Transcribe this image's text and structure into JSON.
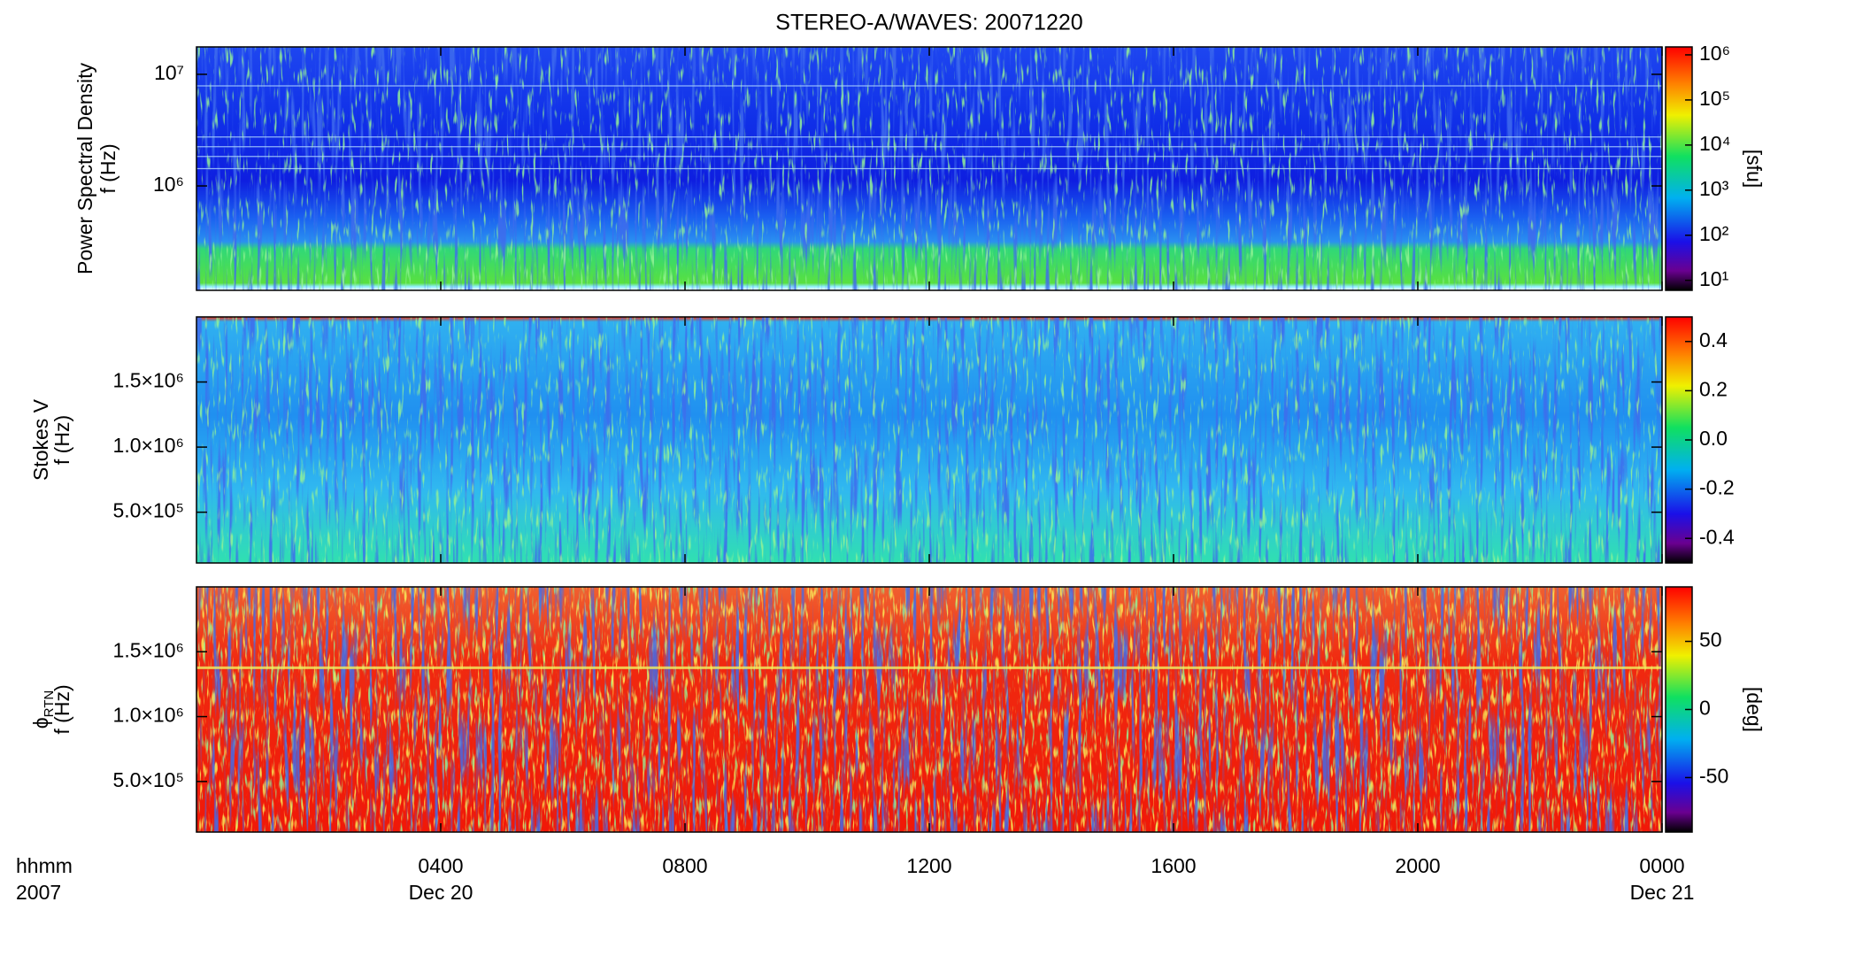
{
  "chart_data": [
    {
      "type": "spectrogram",
      "title": "STEREO-A/WAVES: 20071220",
      "ylabel": "Power Spectral Density",
      "ylabel_unit": "f (Hz)",
      "yscale": "log",
      "ylim": [
        116000,
        17600000
      ],
      "yticks": [
        {
          "value": 1000000,
          "label": "10⁶"
        },
        {
          "value": 10000000,
          "label": "10⁷"
        }
      ],
      "colorbar": {
        "label": "[sfu]",
        "scale": "log",
        "lim": [
          6,
          1500000
        ],
        "ticks": [
          {
            "value": 10,
            "label": "10¹"
          },
          {
            "value": 100,
            "label": "10²"
          },
          {
            "value": 1000,
            "label": "10³"
          },
          {
            "value": 10000,
            "label": "10⁴"
          },
          {
            "value": 100000,
            "label": "10⁵"
          },
          {
            "value": 1000000,
            "label": "10⁶"
          }
        ]
      }
    },
    {
      "type": "spectrogram",
      "ylabel": "Stokes V",
      "ylabel_unit": "f (Hz)",
      "yscale": "linear",
      "ylim": [
        110000,
        2000000
      ],
      "yticks": [
        {
          "value": 500000,
          "label": "5.0×10⁵"
        },
        {
          "value": 1000000,
          "label": "1.0×10⁶"
        },
        {
          "value": 1500000,
          "label": "1.5×10⁶"
        }
      ],
      "colorbar": {
        "scale": "linear",
        "lim": [
          -0.5,
          0.5
        ],
        "ticks": [
          -0.4,
          -0.2,
          {
            "value": 0,
            "label": "0.0"
          },
          0.2,
          0.4
        ]
      }
    },
    {
      "type": "spectrogram",
      "ylabel": "ϕ",
      "ylabel_subscript": "RTN",
      "ylabel_unit": "f (Hz)",
      "yscale": "linear",
      "ylim": [
        110000,
        2000000
      ],
      "yticks": [
        {
          "value": 500000,
          "label": "5.0×10⁵"
        },
        {
          "value": 1000000,
          "label": "1.0×10⁶"
        },
        {
          "value": 1500000,
          "label": "1.5×10⁶"
        }
      ],
      "colorbar": {
        "label": "[deg]",
        "scale": "linear",
        "lim": [
          -90,
          90
        ],
        "ticks": [
          -50,
          0,
          50
        ]
      },
      "xlim": [
        0,
        24
      ],
      "xticks": [
        {
          "value": 4,
          "label": "0400"
        },
        {
          "value": 8,
          "label": "0800"
        },
        {
          "value": 12,
          "label": "1200"
        },
        {
          "value": 16,
          "label": "1600"
        },
        {
          "value": 20,
          "label": "2000"
        },
        {
          "value": 24,
          "label": "0000"
        }
      ],
      "xdates": [
        {
          "value": 4,
          "label": "Dec 20"
        },
        {
          "value": 24,
          "label": "Dec 21"
        }
      ],
      "xunit": "hhmm",
      "xyear": "2007"
    }
  ]
}
